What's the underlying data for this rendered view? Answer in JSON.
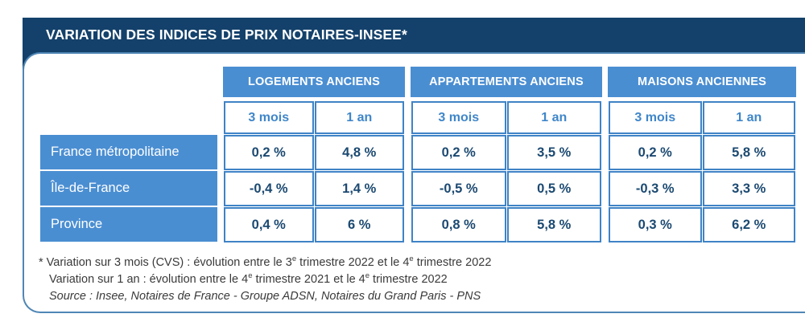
{
  "chart_data": {
    "type": "table",
    "title": "VARIATION DES INDICES DE PRIX NOTAIRES-INSEE*",
    "column_groups": [
      {
        "label": "LOGEMENTS ANCIENS",
        "sub_columns": [
          "3 mois",
          "1 an"
        ]
      },
      {
        "label": "APPARTEMENTS ANCIENS",
        "sub_columns": [
          "3 mois",
          "1 an"
        ]
      },
      {
        "label": "MAISONS ANCIENNES",
        "sub_columns": [
          "3 mois",
          "1 an"
        ]
      }
    ],
    "rows": [
      {
        "label": "France métropolitaine",
        "values": [
          [
            "0,2 %",
            "4,8 %"
          ],
          [
            "0,2 %",
            "3,5 %"
          ],
          [
            "0,2 %",
            "5,8 %"
          ]
        ]
      },
      {
        "label": "Île-de-France",
        "values": [
          [
            "-0,4 %",
            "1,4 %"
          ],
          [
            "-0,5 %",
            "0,5 %"
          ],
          [
            "-0,3 %",
            "3,3 %"
          ]
        ]
      },
      {
        "label": "Province",
        "values": [
          [
            "0,4 %",
            "6 %"
          ],
          [
            "0,8 %",
            "5,8 %"
          ],
          [
            "0,3 %",
            "6,2 %"
          ]
        ]
      }
    ],
    "footnotes": {
      "line1_parts": [
        "* Variation sur 3 mois (CVS) : évolution entre le 3",
        "e",
        " trimestre 2022 et le 4",
        "e",
        " trimestre 2022"
      ],
      "line2_parts": [
        "Variation sur 1 an : évolution entre le 4",
        "e",
        " trimestre 2021 et le 4",
        "e",
        " trimestre 2022"
      ],
      "source": "Source : Insee, Notaires de France - Groupe ADSN, Notaires du Grand Paris - PNS"
    }
  },
  "colors": {
    "title_bar_bg": "#14416b",
    "header_blue": "#4a8ed2",
    "cell_border_blue": "#3f83c6",
    "value_text_navy": "#1b4971",
    "card_border": "#4f86b5",
    "footnote_text": "#3a3a3a"
  }
}
